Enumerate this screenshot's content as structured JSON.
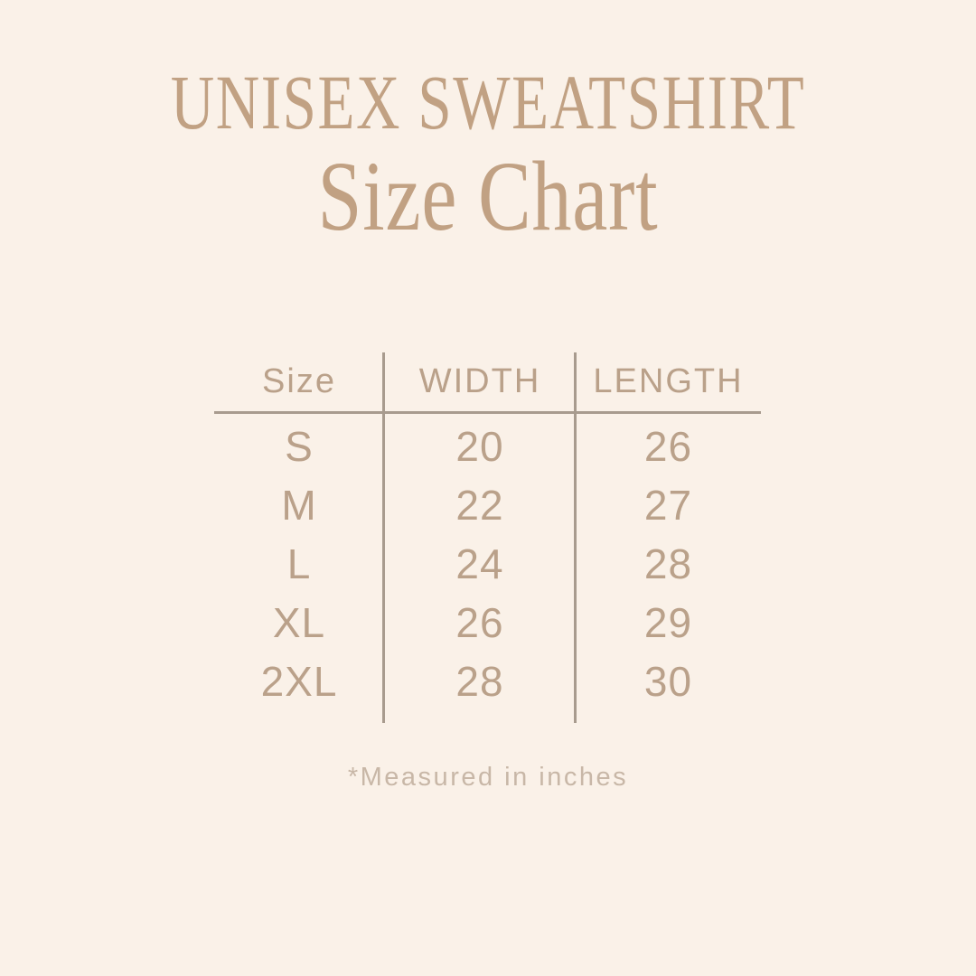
{
  "theme": {
    "background": "#FAF1E8",
    "title_color": "#C1A183",
    "table_text_color": "#BAA18A",
    "line_color": "#A89B8E",
    "footnote_color": "#C8B7A7"
  },
  "header": {
    "title": "UNISEX SWEATSHIRT",
    "subtitle": "Size Chart"
  },
  "chart_data": {
    "type": "table",
    "title": "UNISEX SWEATSHIRT Size Chart",
    "columns": [
      "Size",
      "WIDTH",
      "LENGTH"
    ],
    "rows": [
      {
        "size": "S",
        "width": "20",
        "length": "26"
      },
      {
        "size": "M",
        "width": "22",
        "length": "27"
      },
      {
        "size": "L",
        "width": "24",
        "length": "28"
      },
      {
        "size": "XL",
        "width": "26",
        "length": "29"
      },
      {
        "size": "2XL",
        "width": "28",
        "length": "30"
      }
    ],
    "units": "inches"
  },
  "footnote": "*Measured in inches"
}
